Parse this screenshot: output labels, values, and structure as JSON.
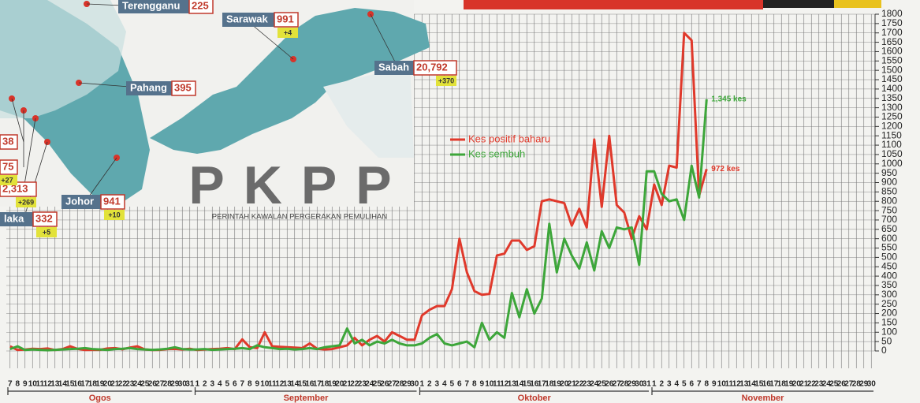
{
  "chart_data": {
    "type": "line",
    "groups": [
      {
        "name": "Ogos",
        "categories": [
          "7",
          "8",
          "9",
          "10",
          "11",
          "12",
          "13",
          "14",
          "15",
          "16",
          "17",
          "18",
          "19",
          "20",
          "21",
          "22",
          "23",
          "24",
          "25",
          "26",
          "27",
          "28",
          "29",
          "30",
          "31"
        ]
      },
      {
        "name": "September",
        "categories": [
          "1",
          "2",
          "3",
          "4",
          "5",
          "6",
          "7",
          "8",
          "9",
          "10",
          "11",
          "12",
          "13",
          "14",
          "15",
          "16",
          "17",
          "18",
          "19",
          "20",
          "21",
          "22",
          "23",
          "24",
          "25",
          "26",
          "27",
          "28",
          "29",
          "30"
        ]
      },
      {
        "name": "Oktober",
        "categories": [
          "1",
          "2",
          "3",
          "4",
          "5",
          "6",
          "7",
          "8",
          "9",
          "10",
          "11",
          "12",
          "13",
          "14",
          "15",
          "16",
          "17",
          "18",
          "19",
          "20",
          "21",
          "22",
          "23",
          "24",
          "25",
          "26",
          "27",
          "28",
          "29",
          "30",
          "31"
        ]
      },
      {
        "name": "November",
        "categories": [
          "1",
          "2",
          "3",
          "4",
          "5",
          "6",
          "7",
          "8",
          "9",
          "10",
          "11",
          "12",
          "13",
          "14",
          "15",
          "16",
          "17",
          "18",
          "19",
          "20",
          "21",
          "22",
          "23",
          "24",
          "25",
          "26",
          "27",
          "28",
          "29",
          "30"
        ]
      }
    ],
    "series": [
      {
        "name": "Kes positif baharu",
        "color": "#e0392b",
        "values": [
          25,
          5,
          7,
          12,
          10,
          13,
          5,
          10,
          25,
          11,
          5,
          6,
          6,
          13,
          15,
          9,
          18,
          25,
          8,
          5,
          6,
          10,
          11,
          8,
          12,
          5,
          8,
          10,
          12,
          15,
          10,
          62,
          20,
          15,
          100,
          25,
          22,
          20,
          18,
          15,
          40,
          12,
          8,
          10,
          20,
          30,
          70,
          30,
          60,
          80,
          50,
          100,
          80,
          60,
          60,
          190,
          220,
          240,
          240,
          330,
          600,
          420,
          320,
          300,
          305,
          510,
          520,
          590,
          590,
          540,
          560,
          800,
          810,
          800,
          790,
          670,
          760,
          660,
          1130,
          770,
          1150,
          780,
          740,
          600,
          720,
          650,
          890,
          780,
          990,
          980,
          1700,
          1660,
          830,
          972,
          null,
          null,
          null,
          null,
          null,
          null,
          null,
          null,
          null,
          null,
          null,
          null,
          null,
          null,
          null,
          null,
          null,
          null,
          null,
          null,
          null,
          null
        ],
        "value_labels": [
          null,
          null,
          null,
          null,
          null,
          null,
          null,
          null,
          null,
          null,
          null,
          null,
          null,
          null,
          null,
          null,
          null,
          null,
          null,
          null,
          null,
          null,
          null,
          null,
          null,
          null,
          null,
          null,
          null,
          null,
          null,
          null,
          null,
          null,
          null,
          null,
          null,
          null,
          null,
          null,
          null,
          null,
          null,
          null,
          null,
          null,
          null,
          null,
          null,
          null,
          null,
          null,
          null,
          null,
          null,
          null,
          null,
          null,
          null,
          null,
          null,
          null,
          null,
          null,
          null,
          null,
          null,
          null,
          null,
          null,
          null,
          null,
          null,
          null,
          null,
          null,
          null,
          null,
          null,
          null,
          null,
          null,
          null,
          null,
          null,
          null,
          null,
          null,
          null,
          null,
          null,
          null,
          null,
          "972 kes",
          null,
          null,
          null,
          null,
          null,
          null,
          null,
          null,
          null,
          null,
          null,
          null,
          null,
          null,
          null,
          null,
          null,
          null,
          null,
          null,
          null,
          null
        ]
      },
      {
        "name": "Kes sembuh",
        "color": "#3da63a",
        "values": [
          10,
          25,
          5,
          8,
          6,
          4,
          6,
          8,
          10,
          12,
          15,
          10,
          8,
          5,
          10,
          12,
          15,
          10,
          8,
          6,
          8,
          12,
          20,
          10,
          8,
          8,
          10,
          6,
          8,
          10,
          12,
          15,
          10,
          30,
          20,
          15,
          10,
          12,
          8,
          10,
          15,
          10,
          20,
          25,
          30,
          120,
          40,
          60,
          30,
          50,
          40,
          60,
          40,
          30,
          30,
          40,
          70,
          90,
          40,
          30,
          40,
          50,
          20,
          150,
          60,
          100,
          70,
          310,
          180,
          330,
          200,
          280,
          680,
          420,
          600,
          510,
          440,
          580,
          430,
          640,
          550,
          660,
          650,
          660,
          460,
          960,
          960,
          840,
          800,
          810,
          700,
          990,
          820,
          1345,
          null,
          null,
          null,
          null,
          null,
          null,
          null,
          null,
          null,
          null,
          null,
          null,
          null,
          null,
          null,
          null,
          null,
          null,
          null,
          null,
          null,
          null
        ],
        "value_labels": [
          null,
          null,
          null,
          null,
          null,
          null,
          null,
          null,
          null,
          null,
          null,
          null,
          null,
          null,
          null,
          null,
          null,
          null,
          null,
          null,
          null,
          null,
          null,
          null,
          null,
          null,
          null,
          null,
          null,
          null,
          null,
          null,
          null,
          null,
          null,
          null,
          null,
          null,
          null,
          null,
          null,
          null,
          null,
          null,
          null,
          null,
          null,
          null,
          null,
          null,
          null,
          null,
          null,
          null,
          null,
          null,
          null,
          null,
          null,
          null,
          null,
          null,
          null,
          null,
          null,
          null,
          null,
          null,
          null,
          null,
          null,
          null,
          null,
          null,
          null,
          null,
          null,
          null,
          null,
          null,
          null,
          null,
          null,
          null,
          null,
          null,
          null,
          null,
          null,
          null,
          null,
          null,
          null,
          "1,345 kes",
          null,
          null,
          null,
          null,
          null,
          null,
          null,
          null,
          null,
          null,
          null,
          null,
          null,
          null,
          null,
          null,
          null,
          null,
          null,
          null,
          null,
          null
        ]
      }
    ],
    "ylim": [
      0,
      1800
    ],
    "yticks": [
      0,
      50,
      100,
      150,
      200,
      250,
      300,
      350,
      400,
      450,
      500,
      550,
      600,
      650,
      700,
      750,
      800,
      850,
      900,
      950,
      1000,
      1050,
      1100,
      1150,
      1200,
      1250,
      1300,
      1350,
      1400,
      1450,
      1500,
      1550,
      1600,
      1650,
      1700,
      1750,
      1800
    ],
    "grid": true
  },
  "map": {
    "logo": "PKPP",
    "logo_subtitle": "PERINTAH KAWALAN PERGERAKAN PEMULIHAN",
    "states": [
      {
        "name": "Terengganu",
        "cases": "225"
      },
      {
        "name": "Sarawak",
        "cases": "991",
        "new": "+4"
      },
      {
        "name": "Sabah",
        "cases": "20,792",
        "new": "+370"
      },
      {
        "name": "Pahang",
        "cases": "395"
      },
      {
        "name": "Johor",
        "cases": "941",
        "new": "+10"
      },
      {
        "name": "laka",
        "cases": "332",
        "new": "+5"
      },
      {
        "cases": "2,313",
        "new": "+269"
      },
      {
        "cases": "75",
        "new": "+27"
      },
      {
        "cases": "38"
      }
    ]
  }
}
